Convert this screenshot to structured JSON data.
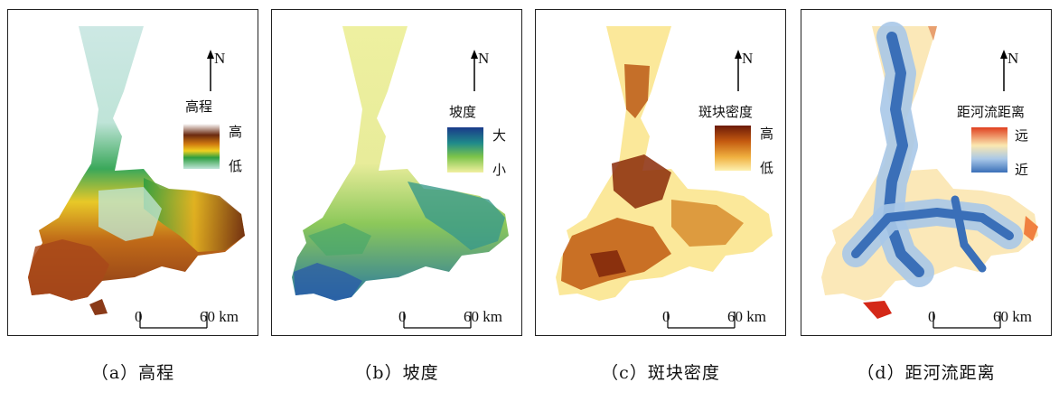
{
  "north_label": "N",
  "scale": {
    "start": "0",
    "end": "60 km"
  },
  "panels": [
    {
      "caption": "（a）高程",
      "legend_title": "高程",
      "legend_high": "高",
      "legend_low": "低",
      "colors": [
        "#ffffff",
        "#6b2a10",
        "#d07a10",
        "#f0d020",
        "#2e9e40",
        "#bfe4d8"
      ]
    },
    {
      "caption": "（b）坡度",
      "legend_title": "坡度",
      "legend_high": "大",
      "legend_low": "小",
      "colors": [
        "#1a3a8a",
        "#1f8a8a",
        "#7cc44a",
        "#f2f0a0"
      ]
    },
    {
      "caption": "（c）斑块密度",
      "legend_title": "斑块密度",
      "legend_high": "高",
      "legend_low": "低",
      "colors": [
        "#6b1a08",
        "#c45a10",
        "#f0b040",
        "#fdf0b0"
      ]
    },
    {
      "caption": "（d）距河流距离",
      "legend_title": "距河流距离",
      "legend_high": "远",
      "legend_low": "近",
      "colors": [
        "#e04020",
        "#fbe8b0",
        "#a9c8e8",
        "#3a6fb8"
      ]
    }
  ]
}
